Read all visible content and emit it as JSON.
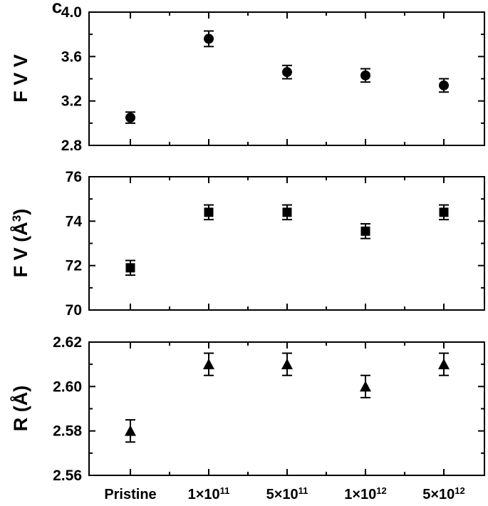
{
  "panel_label": "c",
  "chart_data": [
    {
      "type": "scatter",
      "marker": "circle",
      "ylabel": "F V V",
      "ylabel_sup": "",
      "ylim": [
        2.8,
        4.0
      ],
      "yticks": [
        "2.8",
        "3.2",
        "3.6",
        "4.0"
      ],
      "categories": [
        "Pristine",
        "1×10",
        "5×10",
        "1×10",
        "5×10"
      ],
      "values": [
        3.05,
        3.76,
        3.46,
        3.43,
        3.34
      ],
      "errors": [
        0.05,
        0.07,
        0.06,
        0.06,
        0.06
      ]
    },
    {
      "type": "scatter",
      "marker": "square",
      "ylabel": "F V (Å",
      "ylabel_sup": "3",
      "ylabel_end": ")",
      "ylim": [
        70,
        76
      ],
      "yticks": [
        "70",
        "72",
        "74",
        "76"
      ],
      "categories": [
        "Pristine",
        "1×10",
        "5×10",
        "1×10",
        "5×10"
      ],
      "values": [
        71.9,
        74.4,
        74.4,
        73.55,
        74.4
      ],
      "errors": [
        0.33,
        0.33,
        0.33,
        0.33,
        0.33
      ]
    },
    {
      "type": "scatter",
      "marker": "triangle",
      "ylabel": "R (Å)",
      "ylabel_sup": "",
      "ylim": [
        2.56,
        2.62
      ],
      "yticks": [
        "2.56",
        "2.58",
        "2.60",
        "2.62"
      ],
      "categories": [
        "Pristine",
        "1×10",
        "5×10",
        "1×10",
        "5×10"
      ],
      "values": [
        2.58,
        2.61,
        2.61,
        2.6,
        2.61
      ],
      "errors": [
        0.005,
        0.005,
        0.005,
        0.005,
        0.005
      ]
    }
  ],
  "x_axis": {
    "tick_labels": [
      {
        "base": "Pristine",
        "exp": ""
      },
      {
        "base": "1×10",
        "exp": "11"
      },
      {
        "base": "5×10",
        "exp": "11"
      },
      {
        "base": "1×10",
        "exp": "12"
      },
      {
        "base": "5×10",
        "exp": "12"
      }
    ]
  }
}
